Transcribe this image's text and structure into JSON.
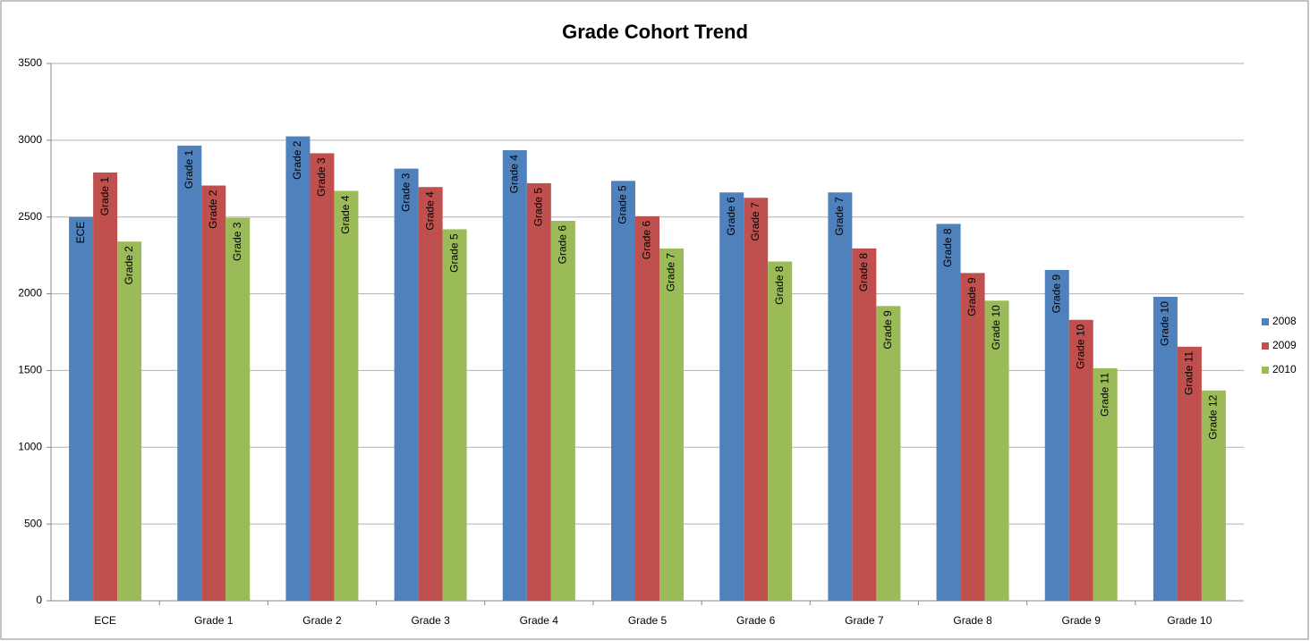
{
  "chart_data": {
    "type": "bar",
    "title": "Grade Cohort Trend",
    "categories": [
      "ECE",
      "Grade 1",
      "Grade 2",
      "Grade 3",
      "Grade 4",
      "Grade 5",
      "Grade 6",
      "Grade 7",
      "Grade 8",
      "Grade 9",
      "Grade 10"
    ],
    "series": [
      {
        "name": "2008",
        "color": "#4f81bd",
        "values": [
          2500,
          2965,
          3025,
          2815,
          2935,
          2735,
          2660,
          2660,
          2455,
          2155,
          1980
        ],
        "labels": [
          "ECE",
          "Grade 1",
          "Grade 2",
          "Grade 3",
          "Grade 4",
          "Grade 5",
          "Grade 6",
          "Grade 7",
          "Grade 8",
          "Grade 9",
          "Grade 10"
        ]
      },
      {
        "name": "2009",
        "color": "#c0504d",
        "values": [
          2790,
          2705,
          2915,
          2695,
          2720,
          2505,
          2625,
          2295,
          2135,
          1830,
          1655
        ],
        "labels": [
          "Grade 1",
          "Grade 2",
          "Grade 3",
          "Grade 4",
          "Grade 5",
          "Grade 6",
          "Grade 7",
          "Grade 8",
          "Grade 9",
          "Grade 10",
          "Grade 11"
        ]
      },
      {
        "name": "2010",
        "color": "#9bbb59",
        "values": [
          2340,
          2495,
          2670,
          2420,
          2475,
          2295,
          2210,
          1920,
          1955,
          1515,
          1370
        ],
        "labels": [
          "Grade 2",
          "Grade 3",
          "Grade 4",
          "Grade 5",
          "Grade 6",
          "Grade 7",
          "Grade 8",
          "Grade 9",
          "Grade 10",
          "Grade 11",
          "Grade 12"
        ]
      }
    ],
    "ylim": [
      0,
      3500
    ],
    "yticks": [
      0,
      500,
      1000,
      1500,
      2000,
      2500,
      3000,
      3500
    ],
    "grid": true,
    "legend": "right"
  }
}
